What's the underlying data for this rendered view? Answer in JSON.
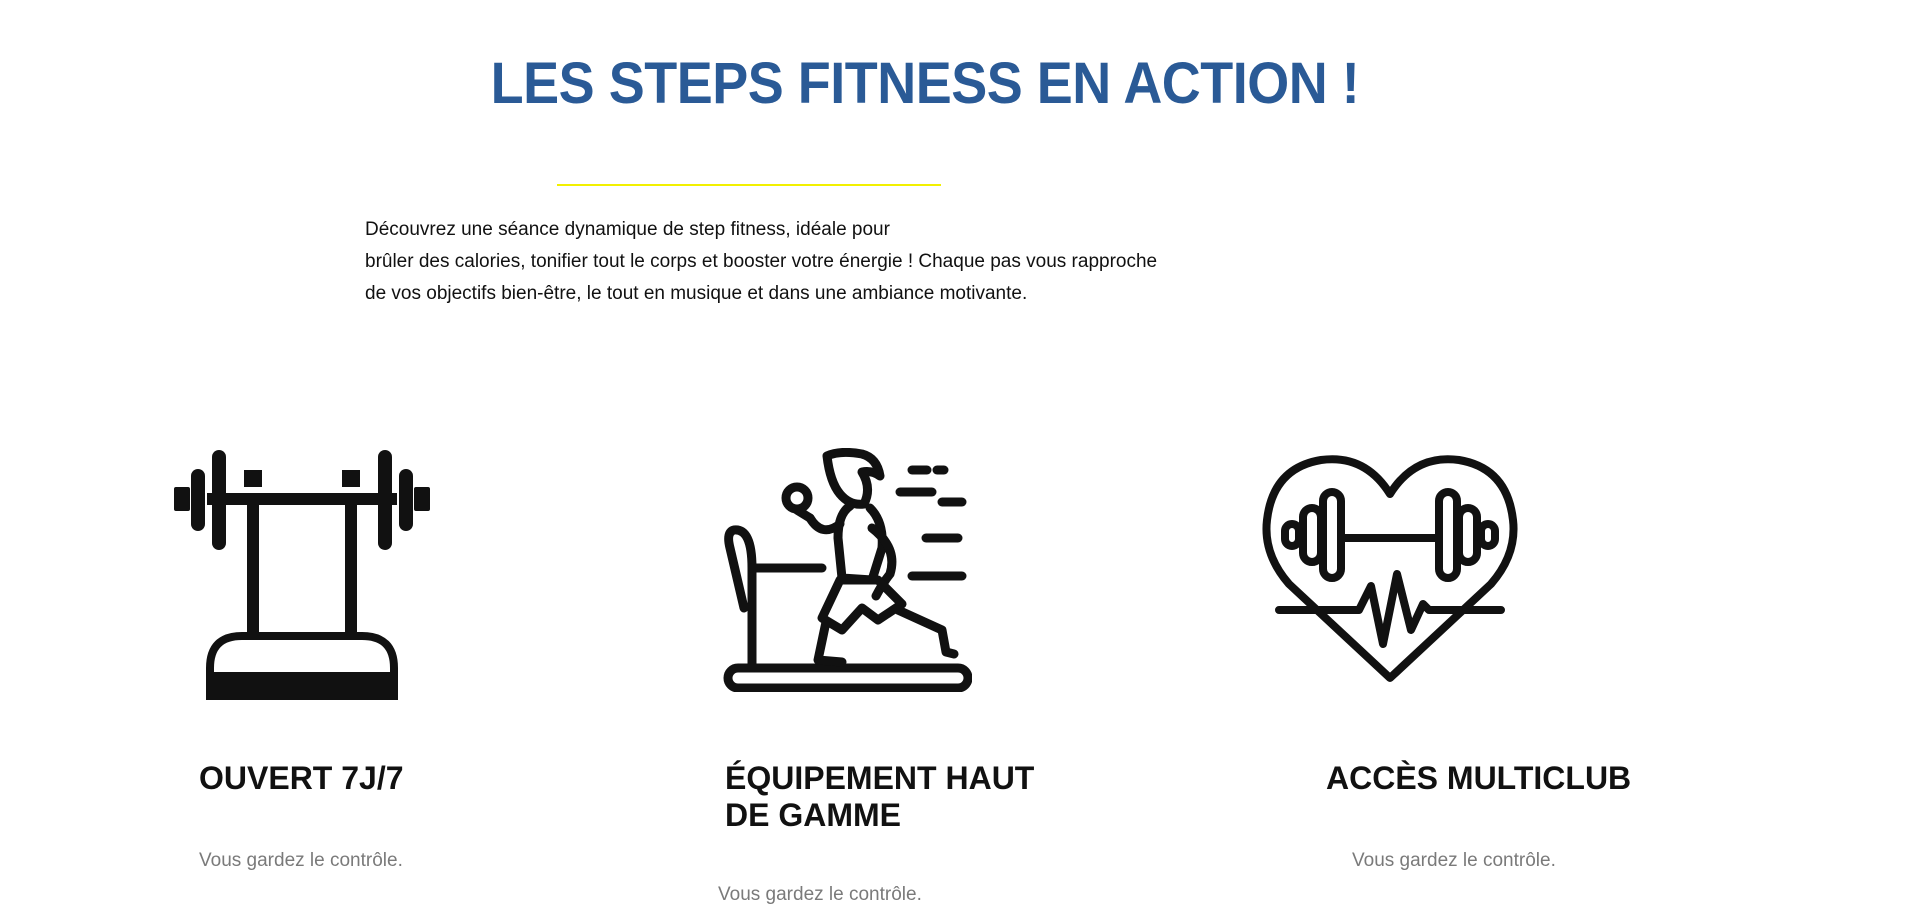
{
  "section": {
    "title": "LES STEPS FITNESS EN ACTION !",
    "intro_lines": [
      "Découvrez une séance dynamique de step fitness, idéale pour",
      "brûler des calories, tonifier tout le corps et booster votre énergie ! Chaque pas vous rapproche",
      "de vos objectifs bien-être, le tout en musique et dans une ambiance motivante."
    ],
    "accent_color": "#2a5a96",
    "divider_color": "#f2f000"
  },
  "features": [
    {
      "icon": "barbell-rack-icon",
      "title_lines": [
        "OUVERT 7J/7"
      ],
      "text": "Vous gardez le contrôle."
    },
    {
      "icon": "treadmill-runner-icon",
      "title_lines": [
        "ÉQUIPEMENT HAUT",
        "DE GAMME"
      ],
      "text": "Vous gardez le contrôle."
    },
    {
      "icon": "heart-dumbbell-icon",
      "title_lines": [
        "ACCÈS MULTICLUB"
      ],
      "text": "Vous gardez le contrôle."
    }
  ]
}
